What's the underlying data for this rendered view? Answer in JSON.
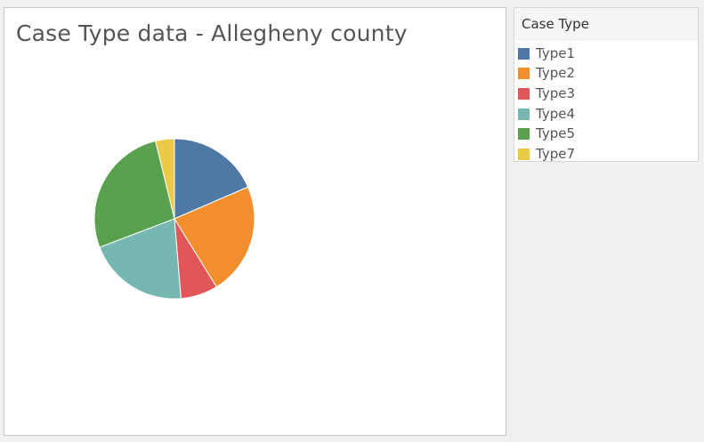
{
  "chart_data": {
    "type": "pie",
    "title": "Case Type data - Allegheny county",
    "legend_title": "Case Type",
    "legend_placement": "right",
    "slice_order": [
      "Type1",
      "Type2",
      "Type3",
      "Type4",
      "Type5",
      "Type7"
    ],
    "slices": [
      {
        "label": "Type1",
        "percent": 18.5,
        "color": "#4e79a7"
      },
      {
        "label": "Type2",
        "percent": 22.7,
        "color": "#f28e2b"
      },
      {
        "label": "Type3",
        "percent": 7.5,
        "color": "#e15759"
      },
      {
        "label": "Type4",
        "percent": 20.5,
        "color": "#76b7b2"
      },
      {
        "label": "Type5",
        "percent": 27.0,
        "color": "#59a14f"
      },
      {
        "label": "Type7",
        "percent": 3.8,
        "color": "#edc948"
      }
    ]
  }
}
